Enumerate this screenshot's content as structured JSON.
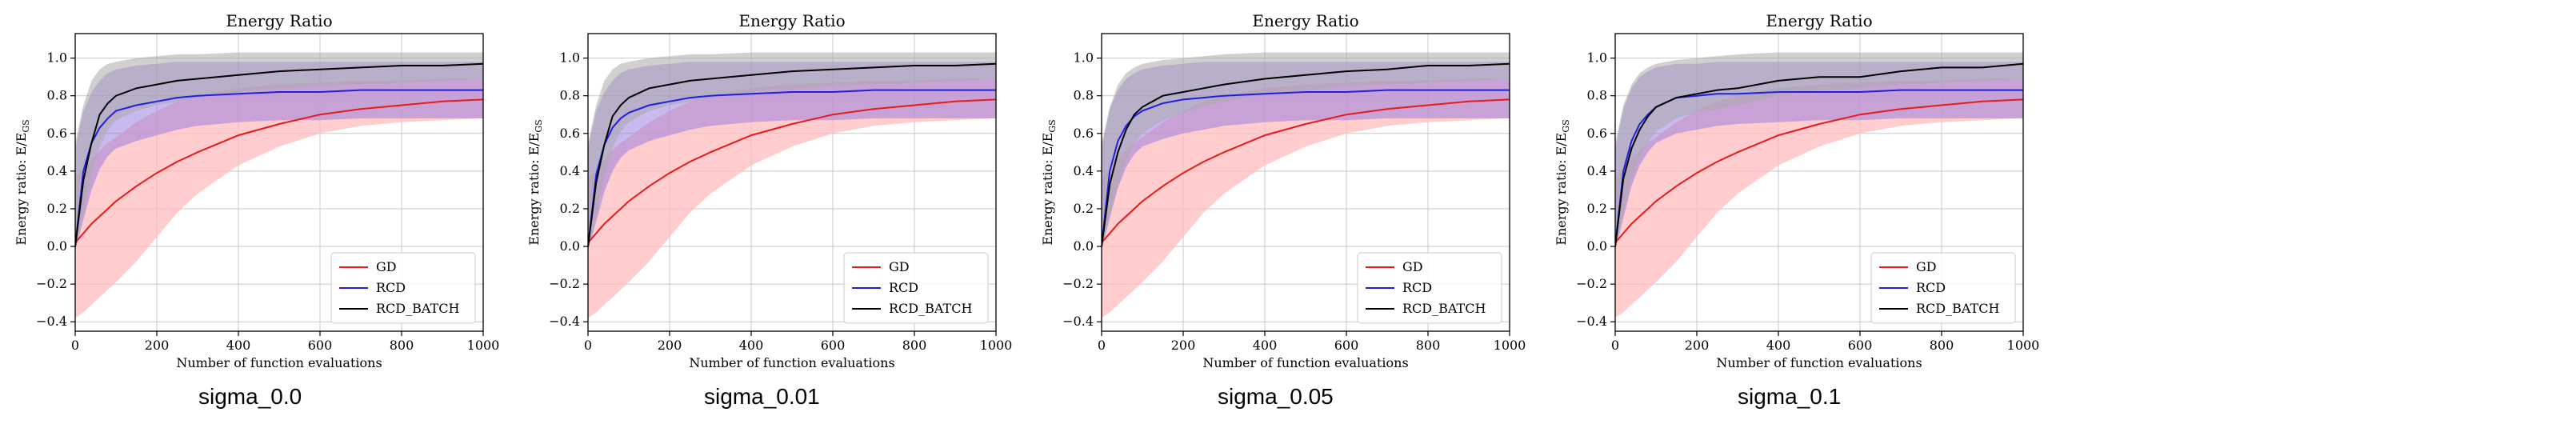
{
  "colors": {
    "gd": "#e8191a",
    "gd_band": "#ffbcbc",
    "rcd": "#1f1fe0",
    "rcd_band": "#9a80e0",
    "batch": "#000000",
    "batch_band": "#a9a9a9",
    "grid": "#c8c8c8"
  },
  "captions": [
    "sigma_0.0",
    "sigma_0.01",
    "sigma_0.05",
    "sigma_0.1"
  ],
  "chart_data": [
    {
      "type": "line",
      "title": "Energy Ratio",
      "xlabel": "Number of function evaluations",
      "ylabel_main": "Energy ratio: E/E",
      "ylabel_sub": "GS",
      "xlim": [
        0,
        1000
      ],
      "ylim": [
        -0.45,
        1.13
      ],
      "xticks": [
        0,
        200,
        400,
        600,
        800,
        1000
      ],
      "xtick_labels": [
        "0",
        "200",
        "400",
        "600",
        "800",
        "1000"
      ],
      "yticks": [
        -0.4,
        -0.2,
        0.0,
        0.2,
        0.4,
        0.6,
        0.8,
        1.0
      ],
      "ytick_labels": [
        "−0.4",
        "−0.2",
        "0.0",
        "0.2",
        "0.4",
        "0.6",
        "0.8",
        "1.0"
      ],
      "legend": [
        "GD",
        "RCD",
        "RCD_BATCH"
      ],
      "legend_position": "lower-right",
      "x": [
        0,
        20,
        40,
        60,
        80,
        100,
        150,
        200,
        250,
        300,
        400,
        500,
        600,
        700,
        800,
        900,
        1000
      ],
      "series": [
        {
          "name": "GD",
          "color_key": "gd",
          "band_key": "gd_band",
          "mean": [
            0.02,
            0.07,
            0.12,
            0.16,
            0.2,
            0.24,
            0.32,
            0.39,
            0.45,
            0.5,
            0.59,
            0.65,
            0.7,
            0.73,
            0.75,
            0.77,
            0.78
          ],
          "lower": [
            -0.38,
            -0.35,
            -0.31,
            -0.27,
            -0.23,
            -0.19,
            -0.08,
            0.05,
            0.18,
            0.28,
            0.43,
            0.53,
            0.6,
            0.64,
            0.66,
            0.67,
            0.68
          ],
          "upper": [
            0.36,
            0.41,
            0.46,
            0.51,
            0.55,
            0.58,
            0.66,
            0.72,
            0.77,
            0.8,
            0.84,
            0.86,
            0.87,
            0.88,
            0.88,
            0.89,
            0.89
          ]
        },
        {
          "name": "RCD",
          "color_key": "rcd",
          "band_key": "rcd_band",
          "mean": [
            0.0,
            0.4,
            0.55,
            0.63,
            0.68,
            0.72,
            0.75,
            0.77,
            0.79,
            0.8,
            0.81,
            0.82,
            0.82,
            0.83,
            0.83,
            0.83,
            0.83
          ],
          "lower": [
            -0.02,
            0.14,
            0.3,
            0.41,
            0.48,
            0.52,
            0.56,
            0.59,
            0.62,
            0.64,
            0.66,
            0.67,
            0.67,
            0.68,
            0.68,
            0.68,
            0.68
          ],
          "upper": [
            0.52,
            0.72,
            0.82,
            0.88,
            0.92,
            0.94,
            0.96,
            0.97,
            0.98,
            0.98,
            0.98,
            0.98,
            0.98,
            0.98,
            0.98,
            0.98,
            0.98
          ]
        },
        {
          "name": "RCD_BATCH",
          "color_key": "batch",
          "band_key": "batch_band",
          "mean": [
            0.0,
            0.35,
            0.55,
            0.7,
            0.76,
            0.8,
            0.84,
            0.86,
            0.88,
            0.89,
            0.91,
            0.93,
            0.94,
            0.95,
            0.96,
            0.96,
            0.97
          ],
          "lower": [
            -0.02,
            0.18,
            0.38,
            0.53,
            0.62,
            0.67,
            0.72,
            0.75,
            0.77,
            0.79,
            0.82,
            0.84,
            0.85,
            0.86,
            0.87,
            0.88,
            0.89
          ],
          "upper": [
            0.55,
            0.75,
            0.88,
            0.94,
            0.97,
            0.98,
            1.0,
            1.01,
            1.02,
            1.02,
            1.03,
            1.03,
            1.03,
            1.03,
            1.03,
            1.03,
            1.03
          ]
        }
      ]
    },
    {
      "type": "line",
      "title": "Energy Ratio",
      "xlabel": "Number of function evaluations",
      "ylabel_main": "Energy ratio: E/E",
      "ylabel_sub": "GS",
      "xlim": [
        0,
        1000
      ],
      "ylim": [
        -0.45,
        1.13
      ],
      "xticks": [
        0,
        200,
        400,
        600,
        800,
        1000
      ],
      "xtick_labels": [
        "0",
        "200",
        "400",
        "600",
        "800",
        "1000"
      ],
      "yticks": [
        -0.4,
        -0.2,
        0.0,
        0.2,
        0.4,
        0.6,
        0.8,
        1.0
      ],
      "ytick_labels": [
        "−0.4",
        "−0.2",
        "0.0",
        "0.2",
        "0.4",
        "0.6",
        "0.8",
        "1.0"
      ],
      "legend": [
        "GD",
        "RCD",
        "RCD_BATCH"
      ],
      "legend_position": "lower-right",
      "x": [
        0,
        20,
        40,
        60,
        80,
        100,
        150,
        200,
        250,
        300,
        400,
        500,
        600,
        700,
        800,
        900,
        1000
      ],
      "series": [
        {
          "name": "GD",
          "color_key": "gd",
          "band_key": "gd_band",
          "mean": [
            0.02,
            0.07,
            0.12,
            0.16,
            0.2,
            0.24,
            0.32,
            0.39,
            0.45,
            0.5,
            0.59,
            0.65,
            0.7,
            0.73,
            0.75,
            0.77,
            0.78
          ],
          "lower": [
            -0.38,
            -0.35,
            -0.31,
            -0.27,
            -0.23,
            -0.19,
            -0.08,
            0.05,
            0.18,
            0.28,
            0.43,
            0.53,
            0.6,
            0.64,
            0.66,
            0.67,
            0.68
          ],
          "upper": [
            0.36,
            0.41,
            0.46,
            0.51,
            0.55,
            0.58,
            0.66,
            0.72,
            0.77,
            0.8,
            0.84,
            0.86,
            0.87,
            0.88,
            0.88,
            0.89,
            0.89
          ]
        },
        {
          "name": "RCD",
          "color_key": "rcd",
          "band_key": "rcd_band",
          "mean": [
            0.0,
            0.38,
            0.54,
            0.63,
            0.68,
            0.71,
            0.75,
            0.77,
            0.79,
            0.8,
            0.81,
            0.82,
            0.82,
            0.83,
            0.83,
            0.83,
            0.83
          ],
          "lower": [
            -0.02,
            0.13,
            0.29,
            0.4,
            0.47,
            0.51,
            0.56,
            0.59,
            0.62,
            0.64,
            0.66,
            0.67,
            0.67,
            0.68,
            0.68,
            0.68,
            0.68
          ],
          "upper": [
            0.52,
            0.72,
            0.82,
            0.88,
            0.92,
            0.94,
            0.96,
            0.97,
            0.98,
            0.98,
            0.98,
            0.98,
            0.98,
            0.98,
            0.98,
            0.98,
            0.98
          ]
        },
        {
          "name": "RCD_BATCH",
          "color_key": "batch",
          "band_key": "batch_band",
          "mean": [
            0.0,
            0.34,
            0.54,
            0.69,
            0.75,
            0.79,
            0.84,
            0.86,
            0.88,
            0.89,
            0.91,
            0.93,
            0.94,
            0.95,
            0.96,
            0.96,
            0.97
          ],
          "lower": [
            -0.02,
            0.17,
            0.37,
            0.52,
            0.61,
            0.66,
            0.72,
            0.75,
            0.77,
            0.79,
            0.82,
            0.84,
            0.85,
            0.86,
            0.87,
            0.88,
            0.89
          ],
          "upper": [
            0.55,
            0.75,
            0.88,
            0.94,
            0.97,
            0.98,
            1.0,
            1.01,
            1.02,
            1.02,
            1.03,
            1.03,
            1.03,
            1.03,
            1.03,
            1.03,
            1.03
          ]
        }
      ]
    },
    {
      "type": "line",
      "title": "Energy Ratio",
      "xlabel": "Number of function evaluations",
      "ylabel_main": "Energy ratio: E/E",
      "ylabel_sub": "GS",
      "xlim": [
        0,
        1000
      ],
      "ylim": [
        -0.45,
        1.13
      ],
      "xticks": [
        0,
        200,
        400,
        600,
        800,
        1000
      ],
      "xtick_labels": [
        "0",
        "200",
        "400",
        "600",
        "800",
        "1000"
      ],
      "yticks": [
        -0.4,
        -0.2,
        0.0,
        0.2,
        0.4,
        0.6,
        0.8,
        1.0
      ],
      "ytick_labels": [
        "−0.4",
        "−0.2",
        "0.0",
        "0.2",
        "0.4",
        "0.6",
        "0.8",
        "1.0"
      ],
      "legend": [
        "GD",
        "RCD",
        "RCD_BATCH"
      ],
      "legend_position": "lower-right",
      "x": [
        0,
        20,
        40,
        60,
        80,
        100,
        150,
        200,
        250,
        300,
        400,
        500,
        600,
        700,
        800,
        900,
        1000
      ],
      "series": [
        {
          "name": "GD",
          "color_key": "gd",
          "band_key": "gd_band",
          "mean": [
            0.02,
            0.07,
            0.12,
            0.16,
            0.2,
            0.24,
            0.32,
            0.39,
            0.45,
            0.5,
            0.59,
            0.65,
            0.7,
            0.73,
            0.75,
            0.77,
            0.78
          ],
          "lower": [
            -0.38,
            -0.35,
            -0.31,
            -0.27,
            -0.23,
            -0.19,
            -0.08,
            0.05,
            0.18,
            0.28,
            0.43,
            0.53,
            0.6,
            0.64,
            0.66,
            0.67,
            0.68
          ],
          "upper": [
            0.36,
            0.41,
            0.46,
            0.51,
            0.55,
            0.58,
            0.66,
            0.72,
            0.77,
            0.8,
            0.84,
            0.86,
            0.87,
            0.88,
            0.88,
            0.89,
            0.89
          ]
        },
        {
          "name": "RCD",
          "color_key": "rcd",
          "band_key": "rcd_band",
          "mean": [
            0.0,
            0.4,
            0.56,
            0.64,
            0.69,
            0.72,
            0.76,
            0.78,
            0.79,
            0.8,
            0.81,
            0.82,
            0.82,
            0.83,
            0.83,
            0.83,
            0.83
          ],
          "lower": [
            -0.02,
            0.15,
            0.31,
            0.42,
            0.49,
            0.53,
            0.57,
            0.6,
            0.62,
            0.64,
            0.66,
            0.67,
            0.67,
            0.68,
            0.68,
            0.68,
            0.68
          ],
          "upper": [
            0.52,
            0.73,
            0.83,
            0.89,
            0.92,
            0.94,
            0.96,
            0.97,
            0.98,
            0.98,
            0.98,
            0.98,
            0.98,
            0.98,
            0.98,
            0.98,
            0.98
          ]
        },
        {
          "name": "RCD_BATCH",
          "color_key": "batch",
          "band_key": "batch_band",
          "mean": [
            0.0,
            0.33,
            0.5,
            0.62,
            0.7,
            0.74,
            0.8,
            0.82,
            0.84,
            0.86,
            0.89,
            0.91,
            0.93,
            0.94,
            0.96,
            0.96,
            0.97
          ],
          "lower": [
            -0.02,
            0.16,
            0.33,
            0.45,
            0.55,
            0.6,
            0.67,
            0.71,
            0.74,
            0.77,
            0.81,
            0.83,
            0.85,
            0.86,
            0.87,
            0.88,
            0.89
          ],
          "upper": [
            0.55,
            0.74,
            0.86,
            0.92,
            0.95,
            0.97,
            0.99,
            1.0,
            1.01,
            1.02,
            1.03,
            1.03,
            1.03,
            1.03,
            1.03,
            1.03,
            1.03
          ]
        }
      ]
    },
    {
      "type": "line",
      "title": "Energy Ratio",
      "xlabel": "Number of function evaluations",
      "ylabel_main": "Energy ratio: E/E",
      "ylabel_sub": "GS",
      "xlim": [
        0,
        1000
      ],
      "ylim": [
        -0.45,
        1.13
      ],
      "xticks": [
        0,
        200,
        400,
        600,
        800,
        1000
      ],
      "xtick_labels": [
        "0",
        "200",
        "400",
        "600",
        "800",
        "1000"
      ],
      "yticks": [
        -0.4,
        -0.2,
        0.0,
        0.2,
        0.4,
        0.6,
        0.8,
        1.0
      ],
      "ytick_labels": [
        "−0.4",
        "−0.2",
        "0.0",
        "0.2",
        "0.4",
        "0.6",
        "0.8",
        "1.0"
      ],
      "legend": [
        "GD",
        "RCD",
        "RCD_BATCH"
      ],
      "legend_position": "lower-right",
      "x": [
        0,
        20,
        40,
        60,
        80,
        100,
        150,
        200,
        250,
        300,
        400,
        500,
        600,
        700,
        800,
        900,
        1000
      ],
      "series": [
        {
          "name": "GD",
          "color_key": "gd",
          "band_key": "gd_band",
          "mean": [
            0.02,
            0.07,
            0.12,
            0.16,
            0.2,
            0.24,
            0.32,
            0.39,
            0.45,
            0.5,
            0.59,
            0.65,
            0.7,
            0.73,
            0.75,
            0.77,
            0.78
          ],
          "lower": [
            -0.38,
            -0.35,
            -0.31,
            -0.27,
            -0.23,
            -0.19,
            -0.08,
            0.05,
            0.18,
            0.28,
            0.43,
            0.53,
            0.6,
            0.64,
            0.66,
            0.67,
            0.68
          ],
          "upper": [
            0.36,
            0.41,
            0.46,
            0.51,
            0.55,
            0.58,
            0.66,
            0.72,
            0.77,
            0.8,
            0.84,
            0.86,
            0.87,
            0.88,
            0.88,
            0.89,
            0.89
          ]
        },
        {
          "name": "RCD",
          "color_key": "rcd",
          "band_key": "rcd_band",
          "mean": [
            0.0,
            0.4,
            0.56,
            0.65,
            0.7,
            0.74,
            0.79,
            0.8,
            0.81,
            0.81,
            0.82,
            0.82,
            0.82,
            0.83,
            0.83,
            0.83,
            0.83
          ],
          "lower": [
            -0.02,
            0.15,
            0.32,
            0.43,
            0.5,
            0.55,
            0.6,
            0.62,
            0.64,
            0.65,
            0.66,
            0.67,
            0.67,
            0.68,
            0.68,
            0.68,
            0.68
          ],
          "upper": [
            0.52,
            0.73,
            0.84,
            0.9,
            0.93,
            0.95,
            0.97,
            0.97,
            0.98,
            0.98,
            0.98,
            0.98,
            0.98,
            0.98,
            0.98,
            0.98,
            0.98
          ]
        },
        {
          "name": "RCD_BATCH",
          "color_key": "batch",
          "band_key": "batch_band",
          "mean": [
            0.0,
            0.36,
            0.52,
            0.62,
            0.69,
            0.74,
            0.79,
            0.81,
            0.83,
            0.84,
            0.88,
            0.9,
            0.9,
            0.93,
            0.95,
            0.95,
            0.97
          ],
          "lower": [
            -0.02,
            0.18,
            0.36,
            0.47,
            0.55,
            0.61,
            0.68,
            0.71,
            0.73,
            0.75,
            0.8,
            0.83,
            0.84,
            0.86,
            0.87,
            0.88,
            0.89
          ],
          "upper": [
            0.55,
            0.75,
            0.86,
            0.92,
            0.95,
            0.97,
            0.99,
            1.0,
            1.01,
            1.02,
            1.03,
            1.03,
            1.03,
            1.03,
            1.03,
            1.03,
            1.03
          ]
        }
      ]
    }
  ]
}
